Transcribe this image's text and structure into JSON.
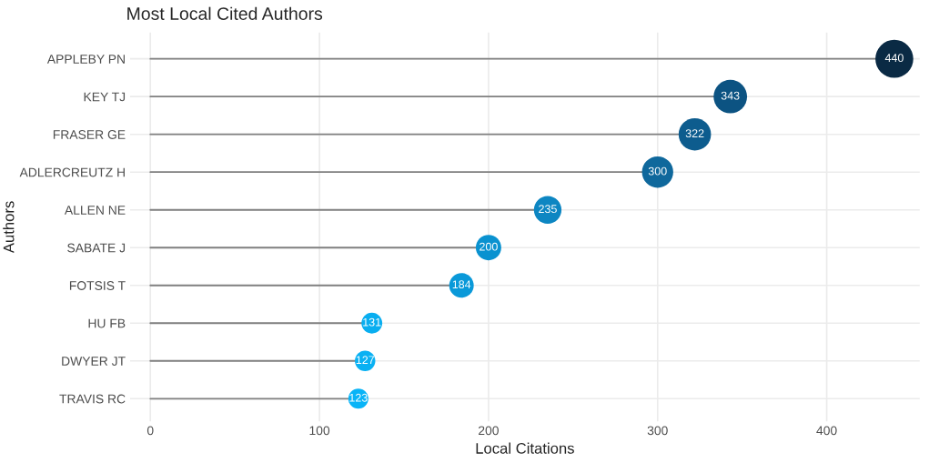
{
  "chart_data": {
    "type": "lollipop",
    "title": "Most Local Cited Authors",
    "xlabel": "Local Citations",
    "ylabel": "Authors",
    "orientation": "horizontal",
    "categories": [
      "APPLEBY PN",
      "KEY TJ",
      "FRASER GE",
      "ADLERCREUTZ H",
      "ALLEN NE",
      "SABATE J",
      "FOTSIS T",
      "HU FB",
      "DWYER JT",
      "TRAVIS RC"
    ],
    "values": [
      440,
      343,
      322,
      300,
      235,
      200,
      184,
      131,
      127,
      123
    ],
    "sizes": [
      1,
      0.78,
      0.73,
      0.68,
      0.53,
      0.45,
      0.42,
      0.3,
      0.29,
      0.28
    ],
    "colors": [
      "#0a2a44",
      "#0c5382",
      "#0d5c8e",
      "#0f689c",
      "#0d86c2",
      "#0a92d0",
      "#0a99d9",
      "#09aef0",
      "#09b1f3",
      "#09b4f7"
    ],
    "xlim": [
      -12,
      455
    ],
    "xticks": [
      0,
      100,
      200,
      300,
      400
    ],
    "grid": true,
    "data_labels": true
  }
}
